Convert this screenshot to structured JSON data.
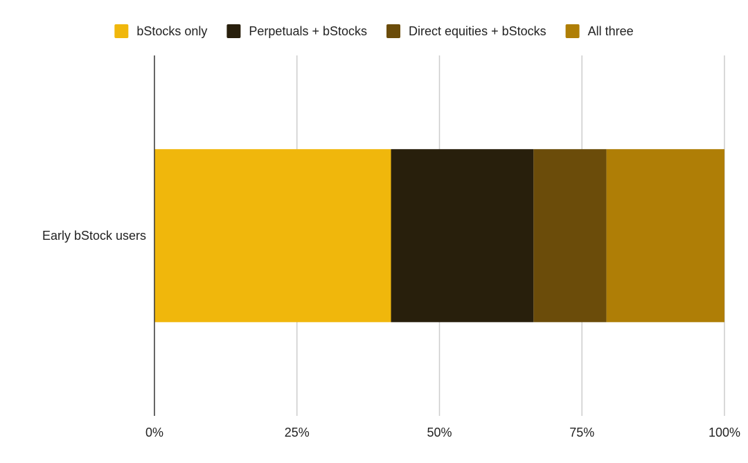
{
  "chart_data": {
    "type": "bar",
    "orientation": "horizontal",
    "stacked": true,
    "categories": [
      "Early bStock users"
    ],
    "series": [
      {
        "name": "bStocks only",
        "color": "#F0B70C",
        "values": [
          41.5
        ]
      },
      {
        "name": "Perpetuals + bStocks",
        "color": "#281F0C",
        "values": [
          25.0
        ]
      },
      {
        "name": "Direct equities + bStocks",
        "color": "#6B4C0A",
        "values": [
          12.8
        ]
      },
      {
        "name": "All three",
        "color": "#AF7E06",
        "values": [
          20.7
        ]
      }
    ],
    "xlim": [
      0,
      100
    ],
    "x_ticks": [
      0,
      25,
      50,
      75,
      100
    ],
    "x_tick_labels": [
      "0%",
      "25%",
      "50%",
      "75%",
      "100%"
    ],
    "grid": true,
    "legend_position": "top"
  }
}
